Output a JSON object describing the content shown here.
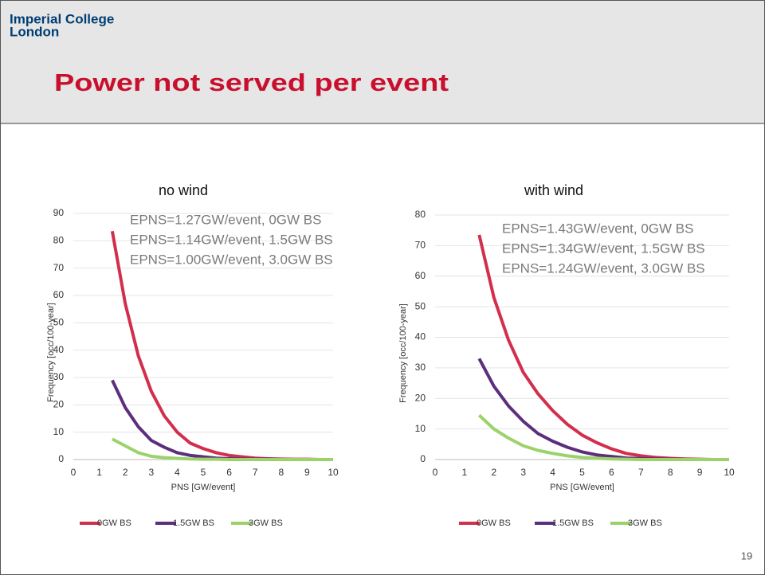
{
  "slide": {
    "logo_line1": "Imperial College",
    "logo_line2": "London",
    "title": "Power not served per event",
    "page_number": "19"
  },
  "chart_data": [
    {
      "type": "line",
      "title": "no wind",
      "xlabel": "PNS [GW/event]",
      "ylabel": "Frequency [occ/100-year]",
      "annotations": [
        "EPNS=1.27GW/event, 0GW BS",
        "EPNS=1.14GW/event, 1.5GW BS",
        "EPNS=1.00GW/event, 3.0GW BS"
      ],
      "x": [
        1.5,
        2,
        2.5,
        3,
        3.5,
        4,
        4.5,
        5,
        5.5,
        6,
        6.5,
        7,
        7.5,
        8,
        8.5,
        9,
        9.5,
        10
      ],
      "series": [
        {
          "name": "0GW BS",
          "color": "#d22f4d",
          "values": [
            83.5,
            57,
            38,
            25,
            16,
            10,
            6,
            4,
            2.5,
            1.5,
            1,
            0.5,
            0.3,
            0.2,
            0.1,
            0.1,
            0,
            0
          ]
        },
        {
          "name": "1.5GW BS",
          "color": "#5c2f7d",
          "values": [
            29,
            19,
            12,
            7,
            4.5,
            2.5,
            1.5,
            1,
            0.5,
            0.3,
            0.2,
            0.1,
            0.1,
            0,
            0,
            0,
            0,
            0
          ]
        },
        {
          "name": "3GW BS",
          "color": "#9bd36a",
          "values": [
            7.5,
            5,
            2.5,
            1.2,
            0.7,
            0.4,
            0.2,
            0.1,
            0.1,
            0,
            0,
            0,
            0,
            0,
            0,
            0,
            0,
            0
          ]
        }
      ],
      "xlim": [
        0,
        10
      ],
      "xticks": [
        0,
        1,
        2,
        3,
        4,
        5,
        6,
        7,
        8,
        9,
        10
      ],
      "ylim": [
        0,
        90
      ],
      "yticks": [
        0,
        10,
        20,
        30,
        40,
        50,
        60,
        70,
        80,
        90
      ],
      "grid": true,
      "legend": "bottom"
    },
    {
      "type": "line",
      "title": "with wind",
      "xlabel": "PNS [GW/event]",
      "ylabel": "Frequency [occ/100-year]",
      "annotations": [
        "EPNS=1.43GW/event, 0GW BS",
        "EPNS=1.34GW/event, 1.5GW BS",
        "EPNS=1.24GW/event, 3.0GW BS"
      ],
      "x": [
        1.5,
        2,
        2.5,
        3,
        3.5,
        4,
        4.5,
        5,
        5.5,
        6,
        6.5,
        7,
        7.5,
        8,
        8.5,
        9,
        9.5,
        10
      ],
      "series": [
        {
          "name": "0GW BS",
          "color": "#d22f4d",
          "values": [
            73.5,
            53,
            39,
            28.5,
            21.5,
            16,
            11.5,
            8,
            5.5,
            3.5,
            2,
            1.2,
            0.7,
            0.4,
            0.2,
            0.1,
            0,
            0
          ]
        },
        {
          "name": "1.5GW BS",
          "color": "#5c2f7d",
          "values": [
            33,
            24,
            17.5,
            12.5,
            8.5,
            6,
            4,
            2.5,
            1.5,
            1,
            0.5,
            0.3,
            0.2,
            0.1,
            0,
            0,
            0,
            0
          ]
        },
        {
          "name": "3GW BS",
          "color": "#9bd36a",
          "values": [
            14.5,
            10,
            7,
            4.5,
            3,
            2,
            1.2,
            0.7,
            0.4,
            0.2,
            0.1,
            0,
            0,
            0,
            0,
            0,
            0,
            0
          ]
        }
      ],
      "xlim": [
        0,
        10
      ],
      "xticks": [
        0,
        1,
        2,
        3,
        4,
        5,
        6,
        7,
        8,
        9,
        10
      ],
      "ylim": [
        0,
        80
      ],
      "yticks": [
        0,
        10,
        20,
        30,
        40,
        50,
        60,
        70,
        80
      ],
      "grid": true,
      "legend": "bottom"
    }
  ]
}
